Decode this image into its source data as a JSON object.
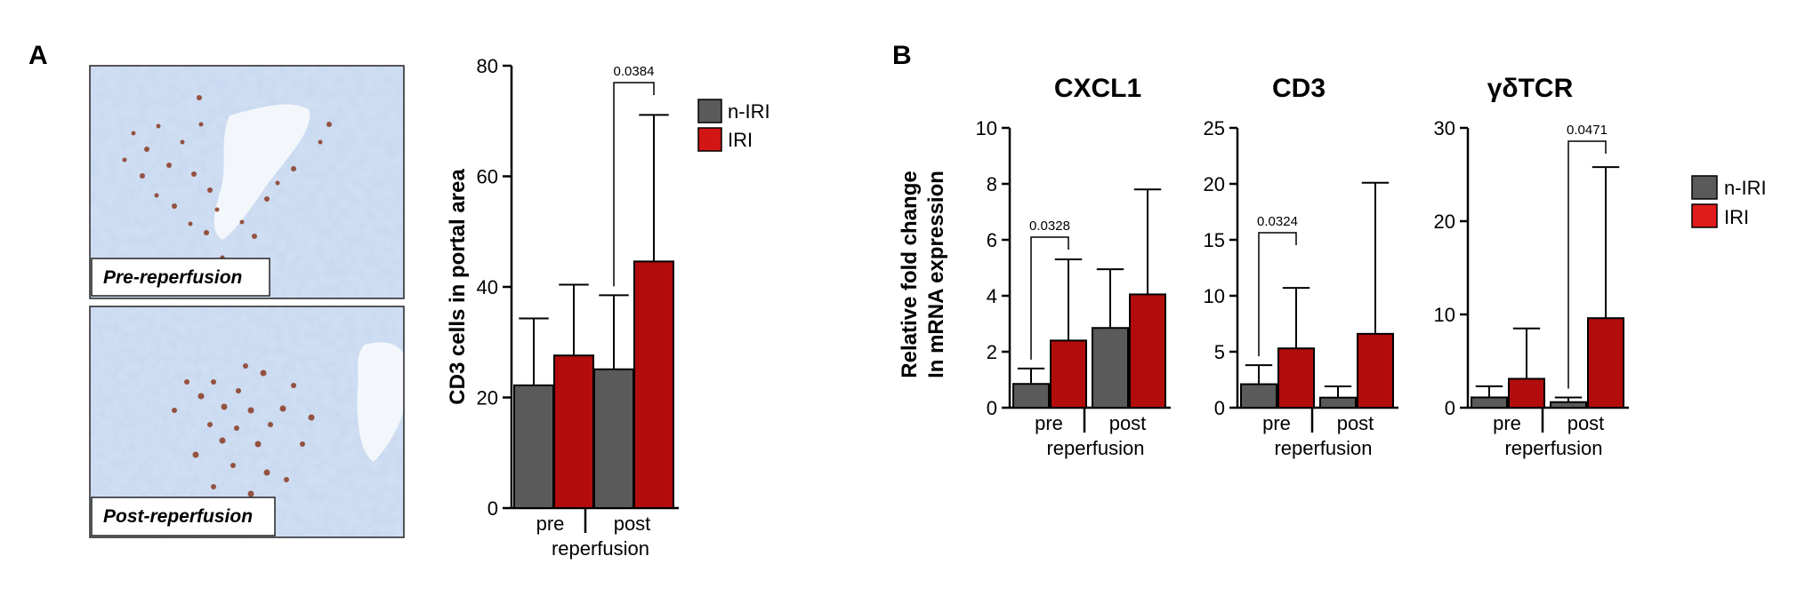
{
  "panel_labels": {
    "a": "A",
    "b": "B"
  },
  "colors": {
    "n_iri": "#5a5a5a",
    "iri": "#b20c0c",
    "legend_iri": "#e01b1b"
  },
  "images": {
    "pre_caption": "Pre-reperfusion",
    "post_caption": "Post-reperfusion"
  },
  "legend_a": {
    "items": [
      {
        "label": "n-IRI",
        "color": "#5a5a5a"
      },
      {
        "label": "IRI",
        "color": "#d21515"
      }
    ]
  },
  "legend_b": {
    "items": [
      {
        "label": "n-IRI",
        "color": "#5a5a5a"
      },
      {
        "label": "IRI",
        "color": "#e01b1b"
      }
    ]
  },
  "chart_data": [
    {
      "id": "cd3_portal",
      "type": "bar",
      "title": "",
      "ylabel": "CD3 cells in portal area",
      "xlabel": "reperfusion",
      "categories": [
        "pre",
        "post"
      ],
      "series": [
        {
          "name": "n-IRI",
          "values": [
            22.2,
            25.1
          ],
          "errors": [
            12.1,
            13.4
          ]
        },
        {
          "name": "IRI",
          "values": [
            27.6,
            44.6
          ],
          "errors": [
            12.8,
            26.5
          ]
        }
      ],
      "ylim": [
        0,
        80
      ],
      "yticks": [
        "0",
        "20",
        "40",
        "60",
        "80"
      ],
      "annotations": [
        {
          "text": "0.0384",
          "category": 1
        }
      ]
    },
    {
      "id": "cxcl1",
      "type": "bar",
      "title": "CXCL1",
      "ylabel": "Relative fold change\nIn mRNA expression",
      "xlabel": "reperfusion",
      "categories": [
        "pre",
        "post"
      ],
      "series": [
        {
          "name": "n-IRI",
          "values": [
            0.85,
            2.85
          ],
          "errors": [
            0.55,
            2.1
          ]
        },
        {
          "name": "IRI",
          "values": [
            2.4,
            4.05
          ],
          "errors": [
            2.9,
            3.75
          ]
        }
      ],
      "ylim": [
        0,
        10
      ],
      "yticks": [
        "0",
        "2",
        "4",
        "6",
        "8",
        "10"
      ],
      "annotations": [
        {
          "text": "0.0328",
          "category": 0
        }
      ]
    },
    {
      "id": "cd3",
      "type": "bar",
      "title": "CD3",
      "ylabel": "",
      "xlabel": "reperfusion",
      "categories": [
        "pre",
        "post"
      ],
      "series": [
        {
          "name": "n-IRI",
          "values": [
            2.1,
            0.9
          ],
          "errors": [
            1.7,
            1.0
          ]
        },
        {
          "name": "IRI",
          "values": [
            5.3,
            6.6
          ],
          "errors": [
            5.4,
            13.5
          ]
        }
      ],
      "ylim": [
        0,
        25
      ],
      "yticks": [
        "0",
        "5",
        "10",
        "15",
        "20",
        "25"
      ],
      "annotations": [
        {
          "text": "0.0324",
          "category": 0
        }
      ]
    },
    {
      "id": "gdtcr",
      "type": "bar",
      "title": "γδTCR",
      "ylabel": "",
      "xlabel": "reperfusion",
      "categories": [
        "pre",
        "post"
      ],
      "series": [
        {
          "name": "n-IRI",
          "values": [
            1.1,
            0.6
          ],
          "errors": [
            1.2,
            0.5
          ]
        },
        {
          "name": "IRI",
          "values": [
            3.1,
            9.6
          ],
          "errors": [
            5.4,
            16.2
          ]
        }
      ],
      "ylim": [
        0,
        30
      ],
      "yticks": [
        "0",
        "10",
        "20",
        "30"
      ],
      "annotations": [
        {
          "text": "0.0471",
          "category": 1
        }
      ]
    }
  ]
}
